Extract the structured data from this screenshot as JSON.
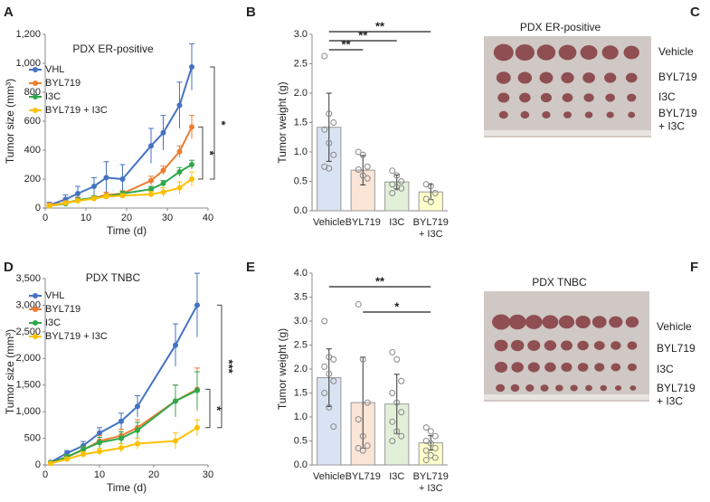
{
  "chart_data": [
    {
      "type": "line",
      "panel": "A",
      "title": "PDX ER-positive",
      "xlabel": "Time (d)",
      "ylabel": "Tumor size (mm³)",
      "x": [
        1,
        5,
        8,
        12,
        15,
        19,
        26,
        29,
        33,
        36
      ],
      "series": [
        {
          "name": "VHL",
          "color": "#4472c4",
          "values": [
            20,
            60,
            100,
            150,
            210,
            200,
            430,
            520,
            710,
            975
          ],
          "errors": [
            20,
            30,
            50,
            60,
            110,
            100,
            120,
            120,
            160,
            160
          ]
        },
        {
          "name": "BYL719",
          "color": "#ed7d31",
          "values": [
            20,
            35,
            55,
            70,
            90,
            100,
            190,
            260,
            390,
            560
          ],
          "errors": [
            10,
            15,
            20,
            15,
            20,
            20,
            30,
            30,
            40,
            80
          ]
        },
        {
          "name": "I3C",
          "color": "#2ea84a",
          "values": [
            15,
            30,
            55,
            70,
            80,
            100,
            130,
            170,
            250,
            300
          ],
          "errors": [
            10,
            15,
            15,
            15,
            15,
            15,
            20,
            20,
            30,
            30
          ]
        },
        {
          "name": "BYL719 + I3C",
          "color": "#ffc000",
          "values": [
            15,
            35,
            50,
            65,
            80,
            85,
            95,
            110,
            140,
            200
          ],
          "errors": [
            10,
            10,
            10,
            15,
            15,
            15,
            20,
            30,
            40,
            50
          ]
        }
      ],
      "xlim": [
        0,
        40
      ],
      "xticks": [
        0,
        10,
        20,
        30,
        40
      ],
      "ylim": [
        0,
        1200
      ],
      "yticks": [
        0,
        200,
        400,
        600,
        800,
        {
          "value": 1000,
          "label": "1,000"
        },
        {
          "value": 1200,
          "label": "1,200"
        }
      ],
      "annotations": [
        "*",
        "*"
      ]
    },
    {
      "type": "bar",
      "panel": "B",
      "ylabel": "Tumor weight (g)",
      "categories": [
        "Vehicle",
        "BYL719",
        "I3C",
        "BYL719\n+ I3C"
      ],
      "values": [
        1.42,
        0.69,
        0.49,
        0.32
      ],
      "errors": [
        0.58,
        0.25,
        0.12,
        0.13
      ],
      "colors": [
        "#dae3f3",
        "#fbe5d6",
        "#e2f0d9",
        "#ffffcc"
      ],
      "points": [
        [
          2.63,
          1.65,
          1.5,
          1.38,
          1.15,
          0.95,
          0.75,
          0.72
        ],
        [
          1.0,
          0.95,
          0.75,
          0.7,
          0.6,
          0.55
        ],
        [
          0.68,
          0.6,
          0.5,
          0.45,
          0.4,
          0.38,
          0.3
        ],
        [
          0.45,
          0.42,
          0.3,
          0.2,
          0.15
        ]
      ],
      "ylim": [
        0,
        3
      ],
      "yticks": [
        {
          "value": 0,
          "label": "0.0"
        },
        0.5,
        {
          "value": 1,
          "label": "1.0"
        },
        1.5,
        {
          "value": 2,
          "label": "2.0"
        },
        2.5,
        {
          "value": 3,
          "label": "3.0"
        }
      ],
      "annotations": [
        "**",
        "**",
        "**"
      ]
    },
    {
      "type": "line",
      "panel": "D",
      "title": "PDX TNBC",
      "xlabel": "Time (d)",
      "ylabel": "Tumor size (mm³)",
      "x": [
        1,
        4,
        7,
        10,
        14,
        17,
        24,
        28
      ],
      "series": [
        {
          "name": "VHL",
          "color": "#4472c4",
          "values": [
            50,
            220,
            360,
            600,
            820,
            1100,
            2250,
            3000
          ],
          "errors": [
            20,
            50,
            80,
            100,
            150,
            200,
            400,
            600
          ]
        },
        {
          "name": "BYL719",
          "color": "#ed7d31",
          "values": [
            40,
            150,
            280,
            450,
            550,
            700,
            1200,
            1420
          ],
          "errors": [
            20,
            40,
            60,
            100,
            120,
            150,
            300,
            400
          ]
        },
        {
          "name": "I3C",
          "color": "#2ea84a",
          "values": [
            40,
            150,
            290,
            420,
            500,
            650,
            1200,
            1400
          ],
          "errors": [
            20,
            40,
            60,
            100,
            120,
            150,
            300,
            350
          ]
        },
        {
          "name": "BYL719 + I3C",
          "color": "#ffc000",
          "values": [
            30,
            110,
            200,
            250,
            320,
            400,
            450,
            700
          ],
          "errors": [
            10,
            30,
            50,
            60,
            80,
            100,
            150,
            150
          ]
        }
      ],
      "xlim": [
        0,
        30
      ],
      "xticks": [
        0,
        10,
        20,
        30
      ],
      "ylim": [
        0,
        3500
      ],
      "yticks": [
        0,
        500,
        {
          "value": 1000,
          "label": "1,000"
        },
        {
          "value": 1500,
          "label": "1,500"
        },
        {
          "value": 2000,
          "label": "2,000"
        },
        {
          "value": 2500,
          "label": "2,500"
        },
        {
          "value": 3000,
          "label": "3,000"
        },
        {
          "value": 3500,
          "label": "3,500"
        }
      ],
      "annotations": [
        "***",
        "*"
      ]
    },
    {
      "type": "bar",
      "panel": "E",
      "ylabel": "Tumor weight (g)",
      "categories": [
        "Vehicle",
        "BYL719",
        "I3C",
        "BYL719\n+ I3C"
      ],
      "values": [
        1.82,
        1.3,
        1.27,
        0.46
      ],
      "errors": [
        0.6,
        0.95,
        0.62,
        0.15
      ],
      "colors": [
        "#dae3f3",
        "#fbe5d6",
        "#e2f0d9",
        "#ffffcc"
      ],
      "points": [
        [
          3.0,
          2.25,
          2.2,
          2.05,
          1.9,
          1.75,
          1.5,
          1.2,
          0.8
        ],
        [
          3.35,
          2.2,
          1.3,
          0.95,
          0.6,
          0.4,
          0.35,
          0.3
        ],
        [
          2.35,
          2.2,
          1.75,
          1.5,
          1.3,
          1.1,
          0.9,
          0.7,
          0.6,
          0.5
        ],
        [
          0.78,
          0.7,
          0.6,
          0.5,
          0.45,
          0.35,
          0.3,
          0.2,
          0.15,
          0.1
        ]
      ],
      "ylim": [
        0,
        4
      ],
      "yticks": [
        {
          "value": 0,
          "label": "0.0"
        },
        0.5,
        {
          "value": 1,
          "label": "1.0"
        },
        1.5,
        {
          "value": 2,
          "label": "2.0"
        },
        2.5,
        {
          "value": 3,
          "label": "3.0"
        },
        3.5,
        {
          "value": 4,
          "label": "4.0"
        }
      ],
      "annotations": [
        "**",
        "*"
      ]
    }
  ],
  "photos": [
    {
      "panel": "C",
      "title": "PDX ER-positive",
      "labels": [
        "Vehicle",
        "BYL719",
        "I3C",
        "BYL719\n+ I3C"
      ]
    },
    {
      "panel": "F",
      "title": "PDX TNBC",
      "labels": [
        "Vehicle",
        "BYL719",
        "I3C",
        "BYL719\n+ I3C"
      ]
    }
  ]
}
